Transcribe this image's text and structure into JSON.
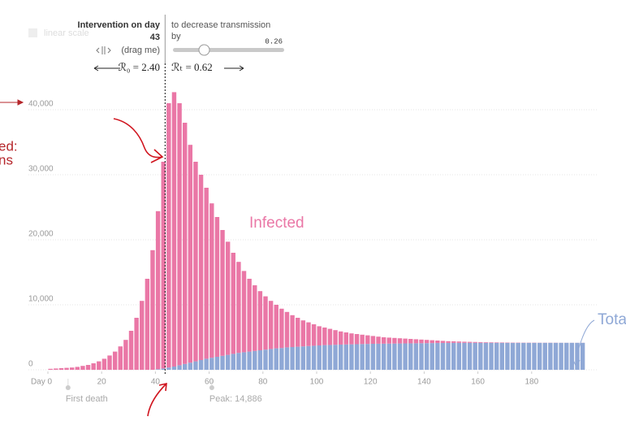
{
  "controls": {
    "scale_label": "linear scale",
    "intervention_label": "Intervention on day",
    "drag_hint": "(drag me)",
    "r0": "ℛ₀ = 2.40",
    "decrease_label": "to decrease transmission",
    "by_label": "by",
    "decrease_value": "0.26",
    "rt": "ℛₜ = 0.62"
  },
  "side_notes": [
    "ed:",
    "ns"
  ],
  "chart_data": {
    "type": "bar",
    "stacked": true,
    "intervention_day": 43,
    "x": [
      0,
      2,
      4,
      6,
      8,
      10,
      12,
      14,
      16,
      18,
      20,
      22,
      24,
      26,
      28,
      30,
      32,
      34,
      36,
      38,
      40,
      42,
      44,
      46,
      48,
      50,
      52,
      54,
      56,
      58,
      60,
      62,
      64,
      66,
      68,
      70,
      72,
      74,
      76,
      78,
      80,
      82,
      84,
      86,
      88,
      90,
      92,
      94,
      96,
      98,
      100,
      102,
      104,
      106,
      108,
      110,
      112,
      114,
      116,
      118,
      120,
      122,
      124,
      126,
      128,
      130,
      132,
      134,
      136,
      138,
      140,
      142,
      144,
      146,
      148,
      150,
      152,
      154,
      156,
      158,
      160,
      162,
      164,
      166,
      168,
      170,
      172,
      174,
      176,
      178,
      180,
      182,
      184,
      186,
      188,
      190,
      192,
      194,
      196,
      198
    ],
    "series": [
      {
        "name": "Tota",
        "color": "#8fa8d6",
        "values": [
          0,
          0,
          0,
          0,
          0,
          0,
          0,
          0,
          0,
          0,
          0,
          0,
          0,
          0,
          0,
          0,
          0,
          0,
          0,
          0,
          100,
          200,
          350,
          500,
          700,
          900,
          1100,
          1300,
          1500,
          1700,
          1850,
          2000,
          2150,
          2300,
          2450,
          2600,
          2700,
          2800,
          2900,
          3000,
          3100,
          3200,
          3300,
          3350,
          3450,
          3500,
          3550,
          3600,
          3650,
          3700,
          3750,
          3800,
          3820,
          3850,
          3880,
          3900,
          3920,
          3940,
          3960,
          3980,
          4000,
          4010,
          4020,
          4030,
          4040,
          4050,
          4060,
          4070,
          4080,
          4090,
          4100,
          4110,
          4120,
          4130,
          4140,
          4150,
          4150,
          4150,
          4150,
          4150,
          4150,
          4150,
          4150,
          4150,
          4150,
          4150,
          4150,
          4150,
          4150,
          4150,
          4150,
          4150,
          4150,
          4150,
          4150,
          4150,
          4150,
          4150,
          4150,
          4150
        ]
      },
      {
        "name": "Infected",
        "color": "#ea77a6",
        "values": [
          150,
          200,
          250,
          300,
          350,
          450,
          600,
          750,
          1000,
          1300,
          1700,
          2200,
          2800,
          3600,
          4600,
          6000,
          8000,
          10600,
          14000,
          18400,
          24300,
          31800,
          40650,
          42200,
          40300,
          37100,
          33500,
          30700,
          28500,
          26300,
          23750,
          21500,
          19350,
          17400,
          15550,
          14000,
          12500,
          11200,
          10100,
          9100,
          8200,
          7400,
          6700,
          6050,
          5450,
          4900,
          4450,
          4000,
          3650,
          3300,
          2950,
          2700,
          2480,
          2250,
          2020,
          1850,
          1680,
          1560,
          1440,
          1320,
          1200,
          1090,
          980,
          920,
          860,
          800,
          740,
          680,
          620,
          560,
          500,
          440,
          380,
          320,
          260,
          230,
          200,
          170,
          150,
          130,
          110,
          90,
          80,
          70,
          60,
          50,
          40,
          40,
          30,
          30,
          30,
          20,
          20,
          20,
          20,
          10,
          10,
          10,
          10,
          10
        ]
      }
    ],
    "xlim": [
      0,
      200
    ],
    "xticks": [
      {
        "value": 0,
        "label": "Day 0"
      },
      20,
      40,
      60,
      80,
      100,
      120,
      140,
      160,
      180
    ],
    "ylim": [
      0,
      45000
    ],
    "yticks": [
      0,
      {
        "value": 10000,
        "label": "10,000"
      },
      {
        "value": 20000,
        "label": "20,000"
      },
      {
        "value": 30000,
        "label": "30,000"
      },
      {
        "value": 40000,
        "label": "40,000"
      }
    ],
    "grid": true,
    "annotations": [
      {
        "text": "First death",
        "x": 7.5
      },
      {
        "text": "Peak: 14,886",
        "x": 61
      }
    ]
  }
}
